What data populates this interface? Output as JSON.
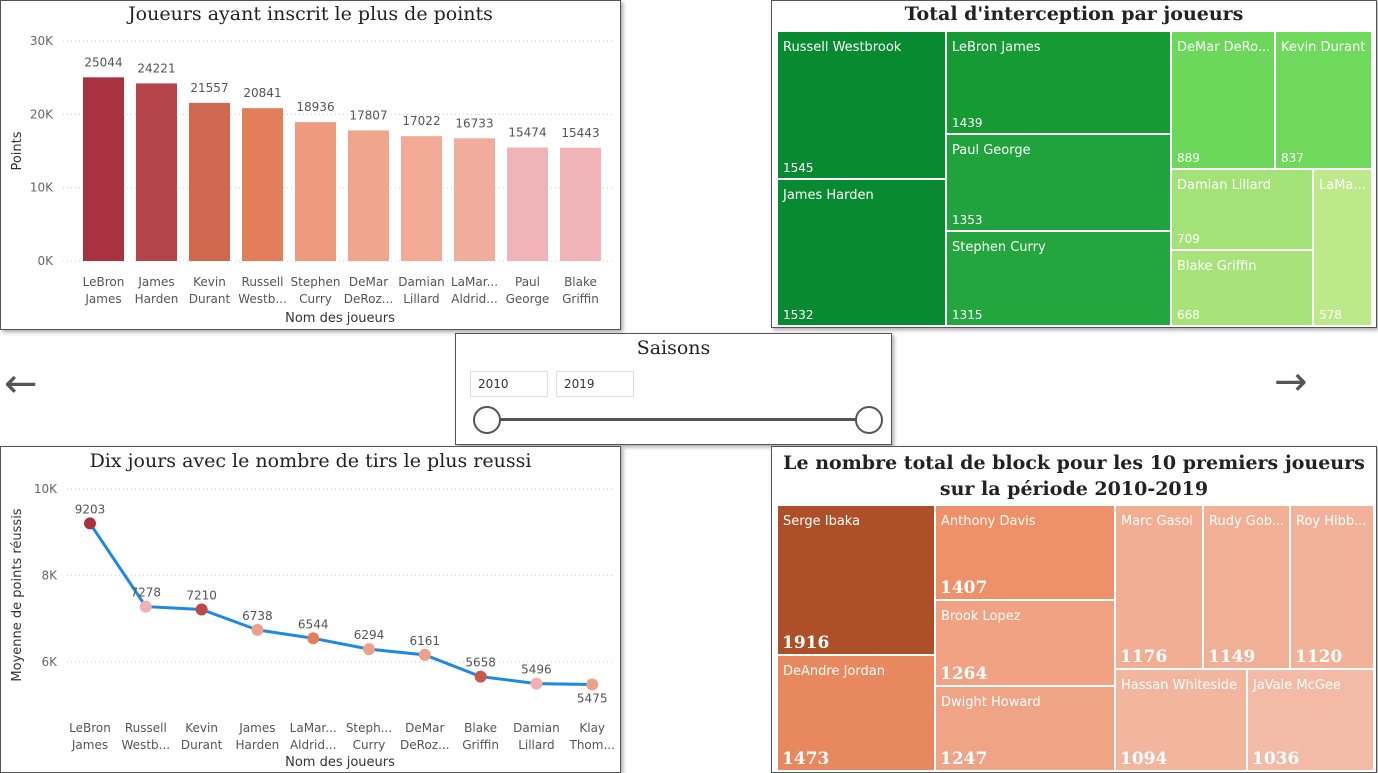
{
  "chart_data": [
    {
      "type": "bar",
      "title": "Joueurs ayant inscrit le plus de points",
      "xlabel": "Nom des joueurs",
      "ylabel": "Points",
      "ylim": [
        0,
        30000
      ],
      "yticks": [
        "0K",
        "10K",
        "20K",
        "30K"
      ],
      "categories": [
        [
          "LeBron",
          "James"
        ],
        [
          "James",
          "Harden"
        ],
        [
          "Kevin",
          "Durant"
        ],
        [
          "Russell",
          "Westb..."
        ],
        [
          "Stephen",
          "Curry"
        ],
        [
          "DeMar",
          "DeRoz..."
        ],
        [
          "Damian",
          "Lillard"
        ],
        [
          "LaMar...",
          "Aldrid..."
        ],
        [
          "Paul",
          "George"
        ],
        [
          "Blake",
          "Griffin"
        ]
      ],
      "values": [
        25044,
        24221,
        21557,
        20841,
        18936,
        17807,
        17022,
        16733,
        15474,
        15443
      ],
      "colors": [
        "#a8323f",
        "#b4444a",
        "#d0684f",
        "#e27f5a",
        "#ee9a7f",
        "#f0a68e",
        "#f2aa96",
        "#f1ad9c",
        "#f0b4b8",
        "#f0b4b8"
      ]
    },
    {
      "type": "treemap",
      "title": "Total d'interception par joueurs",
      "items": [
        {
          "name": "Russell Westbrook",
          "value": "1545",
          "color": "#078a30"
        },
        {
          "name": "James Harden",
          "value": "1532",
          "color": "#078a30"
        },
        {
          "name": "LeBron James",
          "value": "1439",
          "color": "#169a34"
        },
        {
          "name": "Paul George",
          "value": "1353",
          "color": "#20a23c"
        },
        {
          "name": "Stephen Curry",
          "value": "1315",
          "color": "#24a63e"
        },
        {
          "name": "DeMar DeRo...",
          "value": "889",
          "color": "#6bd85a"
        },
        {
          "name": "Kevin Durant",
          "value": "837",
          "color": "#6fd95c"
        },
        {
          "name": "Damian Lillard",
          "value": "709",
          "color": "#a3e276"
        },
        {
          "name": "Blake Griffin",
          "value": "668",
          "color": "#a7e379"
        },
        {
          "name": "LaMa...",
          "value": "578",
          "color": "#bde98a"
        }
      ]
    },
    {
      "type": "line",
      "title": "Dix jours avec le nombre de tirs le plus reussi",
      "xlabel": "Nom des joueurs",
      "ylabel": "Moyenne de points réussis",
      "ylim": [
        5000,
        10000
      ],
      "yticks": [
        {
          "label": "6K",
          "value": 6000
        },
        {
          "label": "8K",
          "value": 8000
        },
        {
          "label": "10K",
          "value": 10000
        }
      ],
      "categories": [
        [
          "LeBron",
          "James"
        ],
        [
          "Russell",
          "Westb..."
        ],
        [
          "Kevin",
          "Durant"
        ],
        [
          "James",
          "Harden"
        ],
        [
          "LaMar...",
          "Aldrid..."
        ],
        [
          "Steph...",
          "Curry"
        ],
        [
          "DeMar",
          "DeRoz..."
        ],
        [
          "Blake",
          "Griffin"
        ],
        [
          "Damian",
          "Lillard"
        ],
        [
          "Klay",
          "Thom..."
        ]
      ],
      "values": [
        9203,
        7278,
        7210,
        6738,
        6544,
        6294,
        6161,
        5658,
        5496,
        5475
      ],
      "line_color": "#1e88e5",
      "marker_colors": [
        "#a8323f",
        "#f0b0b4",
        "#c0474a",
        "#eea08a",
        "#e27f5a",
        "#eea08a",
        "#eea08a",
        "#c85a4a",
        "#f0b0b4",
        "#eea08a"
      ]
    },
    {
      "type": "treemap",
      "title": "Le nombre total de block pour les 10 premiers joueurs sur la période 2010-2019",
      "items": [
        {
          "name": "Serge Ibaka",
          "value": "1916",
          "color": "#ad4f27"
        },
        {
          "name": "DeAndre Jordan",
          "value": "1473",
          "color": "#e8885e"
        },
        {
          "name": "Anthony Davis",
          "value": "1407",
          "color": "#ee9068"
        },
        {
          "name": "Brook Lopez",
          "value": "1264",
          "color": "#f0a283"
        },
        {
          "name": "Dwight Howard",
          "value": "1247",
          "color": "#f0a486"
        },
        {
          "name": "Marc Gasol",
          "value": "1176",
          "color": "#f1ae93"
        },
        {
          "name": "Rudy Gob...",
          "value": "1149",
          "color": "#f1b096"
        },
        {
          "name": "Roy Hibb...",
          "value": "1120",
          "color": "#f2b29a"
        },
        {
          "name": "Hassan Whiteside",
          "value": "1094",
          "color": "#f2b69f"
        },
        {
          "name": "JaVale McGee",
          "value": "1036",
          "color": "#f3bba5"
        }
      ]
    }
  ],
  "slicer": {
    "title": "Saisons",
    "start": "2010",
    "end": "2019"
  },
  "nav": {
    "prev": "←",
    "next": "→"
  }
}
